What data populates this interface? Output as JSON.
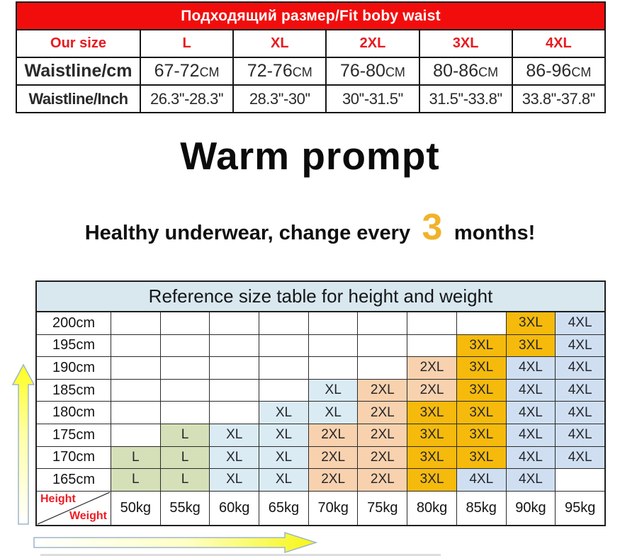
{
  "top_table": {
    "header": "Подходящий размер/Fit boby waist",
    "size_row": {
      "label": "Our size",
      "sizes": [
        "L",
        "XL",
        "2XL",
        "3XL",
        "4XL"
      ]
    },
    "cm_row": {
      "label": "Waistline/cm",
      "unit": "CM",
      "values": [
        "67-72",
        "72-76",
        "76-80",
        "80-86",
        "86-96"
      ]
    },
    "inch_row": {
      "label": "Waistline/Inch",
      "values": [
        "26.3''-28.3''",
        "28.3''-30''",
        "30''-31.5''",
        "31.5''-33.8''",
        "33.8''-37.8''"
      ]
    }
  },
  "warm_prompt": {
    "title": "Warm prompt",
    "line_prefix": "Healthy underwear, change every",
    "highlight_number": "3",
    "line_suffix": "months!"
  },
  "ref_table": {
    "title": "Reference size table for height and weight",
    "corner": {
      "top_label": "Height",
      "bottom_label": "Weight"
    },
    "heights": [
      "200cm",
      "195cm",
      "190cm",
      "185cm",
      "180cm",
      "175cm",
      "170cm",
      "165cm"
    ],
    "weights": [
      "50kg",
      "55kg",
      "60kg",
      "65kg",
      "70kg",
      "75kg",
      "80kg",
      "85kg",
      "90kg",
      "95kg"
    ],
    "grid": [
      [
        "",
        "",
        "",
        "",
        "",
        "",
        "",
        "",
        "3XL",
        "4XL"
      ],
      [
        "",
        "",
        "",
        "",
        "",
        "",
        "",
        "3XL",
        "3XL",
        "4XL"
      ],
      [
        "",
        "",
        "",
        "",
        "",
        "",
        "2XL",
        "3XL",
        "4XL",
        "4XL"
      ],
      [
        "",
        "",
        "",
        "",
        "XL",
        "2XL",
        "2XL",
        "3XL",
        "4XL",
        "4XL"
      ],
      [
        "",
        "",
        "",
        "XL",
        "XL",
        "2XL",
        "3XL",
        "3XL",
        "4XL",
        "4XL"
      ],
      [
        "",
        "L",
        "XL",
        "XL",
        "2XL",
        "2XL",
        "3XL",
        "3XL",
        "4XL",
        "4XL"
      ],
      [
        "L",
        "L",
        "XL",
        "XL",
        "2XL",
        "2XL",
        "3XL",
        "3XL",
        "4XL",
        "4XL"
      ],
      [
        "L",
        "L",
        "XL",
        "XL",
        "2XL",
        "2XL",
        "3XL",
        "4XL",
        "4XL",
        ""
      ]
    ],
    "size_colors": {
      "L": "#d5e0b8",
      "XL": "#daebf3",
      "2XL": "#f8d2ae",
      "3XL": "#f5ba0c",
      "4XL": "#cfdff1"
    }
  },
  "colors": {
    "header_red": "#f20d0d",
    "accent_red": "#e8191f",
    "label_red": "#ee1c25",
    "highlight_gold": "#f0b32a",
    "ref_title_bg": "#d8e8ee"
  }
}
